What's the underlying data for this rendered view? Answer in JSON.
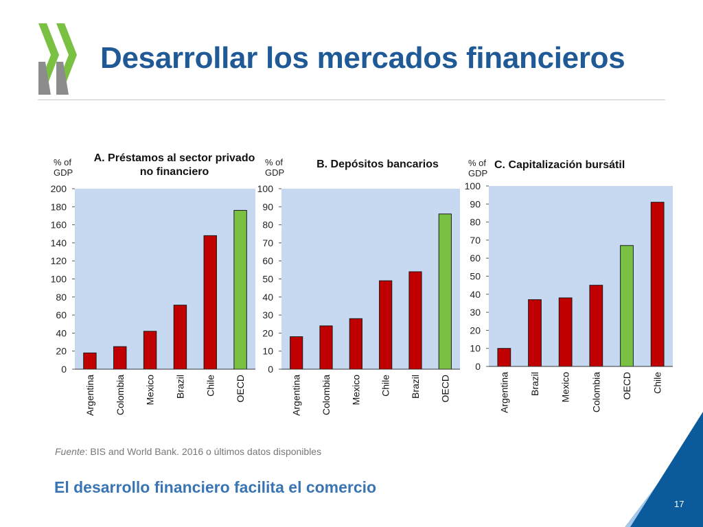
{
  "slide": {
    "title": "Desarrollar los mercados financieros",
    "source_label": "Fuente",
    "source_text": ": BIS and World Bank. 2016 o últimos datos disponibles",
    "subtitle": "El desarrollo financiero facilita el comercio",
    "page_number": "17"
  },
  "colors": {
    "title": "#1f5a96",
    "plot_background": "#c6d9f1",
    "bar_country": "#c00000",
    "bar_oecd": "#7ac143",
    "logo_green": "#7ac143",
    "logo_gray": "#8c8c8c",
    "corner_blue": "#0b5a9b",
    "subtitle": "#3a74b3"
  },
  "chart_data": [
    {
      "type": "bar",
      "title_line1": "A. Préstamos al sector privado",
      "title_line2": "no financiero",
      "ylabel_line1": "% of",
      "ylabel_line2": "GDP",
      "ylim": [
        0,
        200
      ],
      "yticks": [
        0,
        20,
        40,
        60,
        80,
        100,
        120,
        140,
        160,
        180,
        200
      ],
      "categories": [
        "Argentina",
        "Colombia",
        "Mexico",
        "Brazil",
        "Chile",
        "OECD"
      ],
      "values": [
        18,
        25,
        42,
        71,
        148,
        176
      ],
      "highlight": "OECD"
    },
    {
      "type": "bar",
      "title_line1": "B. Depósitos bancarios",
      "title_line2": "",
      "ylabel_line1": "% of",
      "ylabel_line2": "GDP",
      "ylim": [
        0,
        100
      ],
      "yticks": [
        0,
        10,
        20,
        30,
        40,
        50,
        60,
        70,
        80,
        90,
        100
      ],
      "categories": [
        "Argentina",
        "Colombia",
        "Mexico",
        "Chile",
        "Brazil",
        "OECD"
      ],
      "values": [
        18,
        24,
        28,
        49,
        54,
        86
      ],
      "highlight": "OECD"
    },
    {
      "type": "bar",
      "title_line1": "C. Capitalización bursátil",
      "title_line2": "",
      "ylabel_line1": "% of",
      "ylabel_line2": "GDP",
      "ylim": [
        0,
        100
      ],
      "yticks": [
        0,
        10,
        20,
        30,
        40,
        50,
        60,
        70,
        80,
        90,
        100
      ],
      "categories": [
        "Argentina",
        "Brazil",
        "Mexico",
        "Colombia",
        "OECD",
        "Chile"
      ],
      "values": [
        10,
        37,
        38,
        45,
        67,
        91
      ],
      "highlight": "OECD"
    }
  ]
}
